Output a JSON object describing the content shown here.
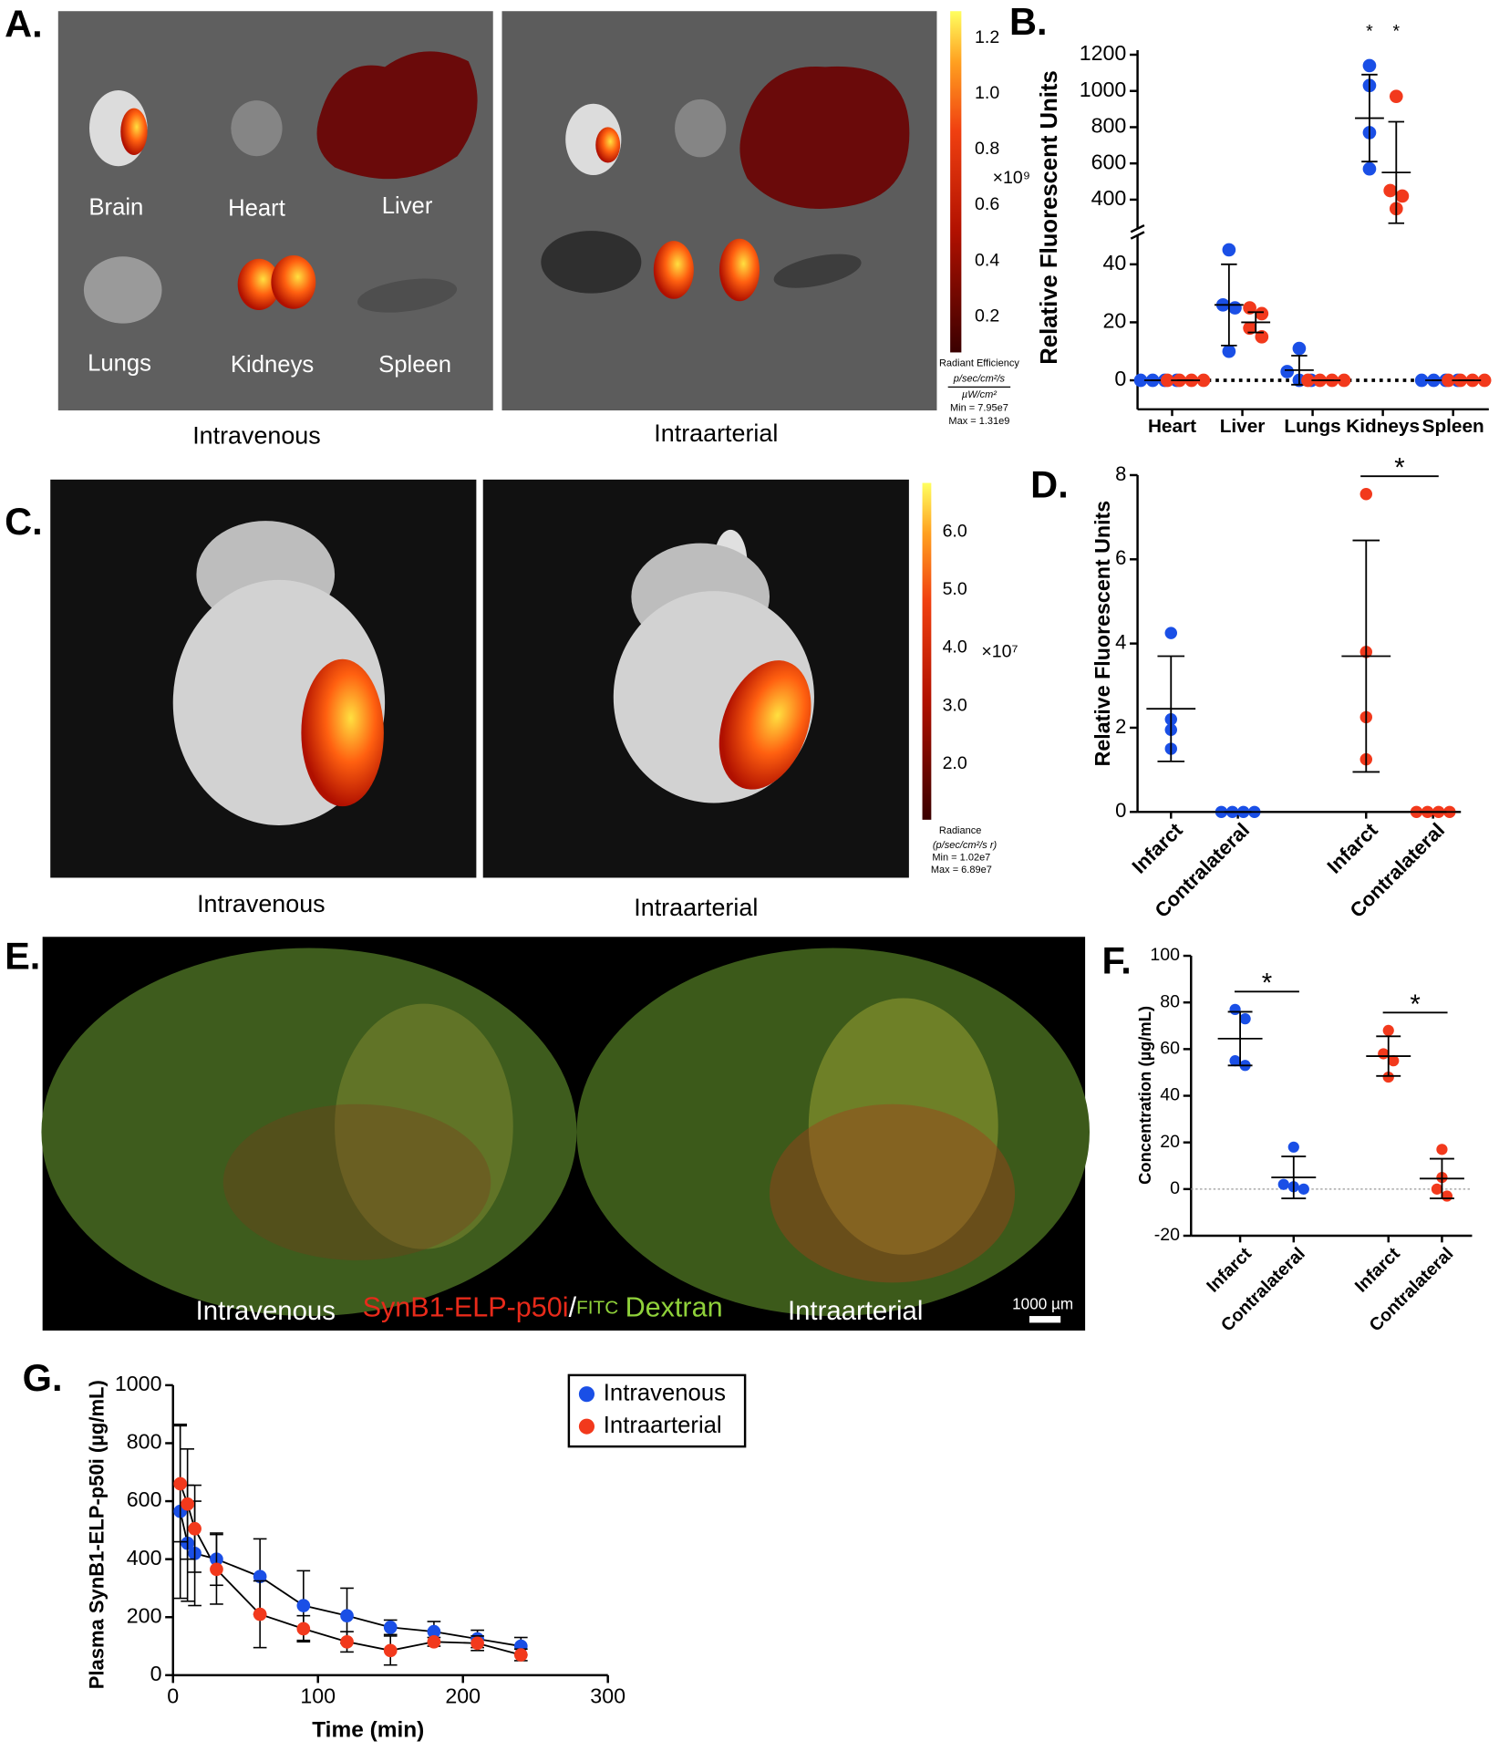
{
  "panel_labels": [
    "A.",
    "B.",
    "C.",
    "D.",
    "E.",
    "F.",
    "G."
  ],
  "panel_a": {
    "organs": [
      "Brain",
      "Heart",
      "Liver",
      "Lungs",
      "Kidneys",
      "Spleen"
    ],
    "captions": [
      "Intravenous",
      "Intraarterial"
    ],
    "colorbar_ticks": [
      "0.2",
      "0.4",
      "0.6",
      "0.8",
      "1.0",
      "1.2"
    ],
    "colorbar_scale": "×10⁹",
    "colorbar_title": "Radiant Efficiency",
    "colorbar_units": [
      "p/sec/cm²/s",
      "µW/cm²"
    ],
    "min": "Min = 7.95e7",
    "max": "Max = 1.31e9"
  },
  "panel_c": {
    "captions": [
      "Intravenous",
      "Intraarterial"
    ],
    "colorbar_ticks": [
      "2.0",
      "3.0",
      "4.0",
      "5.0",
      "6.0"
    ],
    "colorbar_scale": "×10⁷",
    "colorbar_title": "Radiance",
    "colorbar_units": "(p/sec/cm²/s r)",
    "min": "Min = 1.02e7",
    "max": "Max = 6.89e7"
  },
  "panel_e": {
    "captions": [
      "Intravenous",
      "Intraarterial"
    ],
    "stain": [
      "SynB1-ELP-p50i",
      "/",
      "FITC",
      "Dextran"
    ],
    "scale_bar": "1000 µm"
  },
  "chart_data": [
    {
      "type": "dot",
      "ylabel": "Relative Fluorescent Units",
      "categories": [
        "Heart",
        "Liver",
        "Lungs",
        "Kidneys",
        "Spleen"
      ],
      "ylim": [
        -10,
        50
      ],
      "yticks": [
        0,
        20,
        40
      ],
      "upper_ylim": [
        240,
        1225
      ],
      "upper_yticks": [
        400,
        600,
        800,
        1000,
        1200
      ],
      "zero_line": true,
      "series": [
        {
          "color": "#1a4fe6",
          "points": [
            [
              0,
              0,
              0,
              0
            ],
            [
              45,
              26,
              25,
              10
            ],
            [
              11,
              3,
              0,
              0
            ],
            [
              1140,
              1030,
              770,
              570
            ],
            [
              0,
              0,
              0,
              0
            ]
          ],
          "mean": [
            0,
            26,
            3.5,
            850,
            0
          ],
          "sd": [
            0,
            14,
            5,
            240,
            0
          ]
        },
        {
          "color": "#f2391c",
          "points": [
            [
              0,
              0,
              0,
              0
            ],
            [
              25,
              23,
              18,
              15
            ],
            [
              0,
              0,
              0,
              0
            ],
            [
              970,
              450,
              420,
              350
            ],
            [
              0,
              0,
              0,
              0
            ]
          ],
          "mean": [
            0,
            20,
            0,
            550,
            0
          ],
          "sd": [
            0,
            3.5,
            0,
            280,
            0
          ]
        }
      ],
      "significance": [
        {
          "text": "*",
          "category": 3,
          "series": 0
        },
        {
          "text": "*",
          "category": 3,
          "series": 1
        }
      ]
    },
    {
      "type": "dot",
      "ylabel": "Relative Fluorescent Units",
      "categories": [
        "Infarct",
        "Contralateral",
        "Infarct",
        "Contralateral"
      ],
      "ylim": [
        0,
        8
      ],
      "yticks": [
        0,
        2,
        4,
        6,
        8
      ],
      "series": [
        {
          "color": "#1a4fe6",
          "points": [
            [
              4.25,
              2.2,
              1.95,
              1.5
            ],
            [
              0,
              0,
              0,
              0
            ],
            null,
            null
          ],
          "mean": [
            2.45,
            0,
            null,
            null
          ],
          "sd": [
            1.25,
            0,
            null,
            null
          ]
        },
        {
          "color": "#f2391c",
          "points": [
            null,
            null,
            [
              7.55,
              3.8,
              2.25,
              1.25
            ],
            [
              0,
              0,
              0,
              0
            ]
          ],
          "mean": [
            null,
            null,
            3.7,
            0
          ],
          "sd": [
            null,
            null,
            2.75,
            0
          ]
        }
      ],
      "significance": [
        {
          "text": "*",
          "between": [
            2,
            3
          ]
        }
      ]
    },
    {
      "type": "dot",
      "ylabel": "Concentration (µg/mL)",
      "categories": [
        "Infarct",
        "Contralateral",
        "Infarct",
        "Contralateral"
      ],
      "ylim": [
        -20,
        100
      ],
      "yticks": [
        -20,
        0,
        20,
        40,
        60,
        80,
        100
      ],
      "zero_line": true,
      "series": [
        {
          "color": "#1a4fe6",
          "points": [
            [
              77,
              73,
              55,
              53
            ],
            [
              18,
              2,
              1,
              0
            ],
            null,
            null
          ],
          "mean": [
            64.5,
            5,
            null,
            null
          ],
          "sd": [
            11.5,
            9,
            null,
            null
          ]
        },
        {
          "color": "#f2391c",
          "points": [
            null,
            null,
            [
              68,
              58,
              55,
              48
            ],
            [
              17,
              5,
              0,
              -3
            ]
          ],
          "mean": [
            null,
            null,
            57,
            4.5
          ],
          "sd": [
            null,
            null,
            8.5,
            8.5
          ]
        }
      ],
      "significance": [
        {
          "text": "*",
          "between": [
            0,
            1
          ]
        },
        {
          "text": "*",
          "between": [
            2,
            3
          ]
        }
      ]
    },
    {
      "type": "line",
      "xlabel": "Time (min)",
      "ylabel": "Plasma SynB1-ELP-p50i (µg/mL)",
      "x": [
        5,
        10,
        15,
        30,
        60,
        90,
        120,
        150,
        180,
        210,
        240
      ],
      "xlim": [
        0,
        300
      ],
      "xticks": [
        0,
        100,
        200,
        300
      ],
      "ylim": [
        0,
        1000
      ],
      "yticks": [
        0,
        200,
        400,
        600,
        800,
        1000
      ],
      "series": [
        {
          "name": "Intravenous",
          "color": "#1a4fe6",
          "values": [
            565,
            455,
            420,
            400,
            340,
            240,
            205,
            165,
            150,
            125,
            100
          ],
          "errors": [
            300,
            200,
            180,
            90,
            130,
            120,
            95,
            25,
            35,
            30,
            30
          ]
        },
        {
          "name": "Intraarterial",
          "color": "#f2391c",
          "values": [
            660,
            590,
            505,
            365,
            210,
            160,
            115,
            85,
            115,
            110,
            70
          ],
          "errors": [
            200,
            190,
            150,
            120,
            115,
            45,
            35,
            50,
            15,
            25,
            20
          ]
        }
      ]
    }
  ]
}
